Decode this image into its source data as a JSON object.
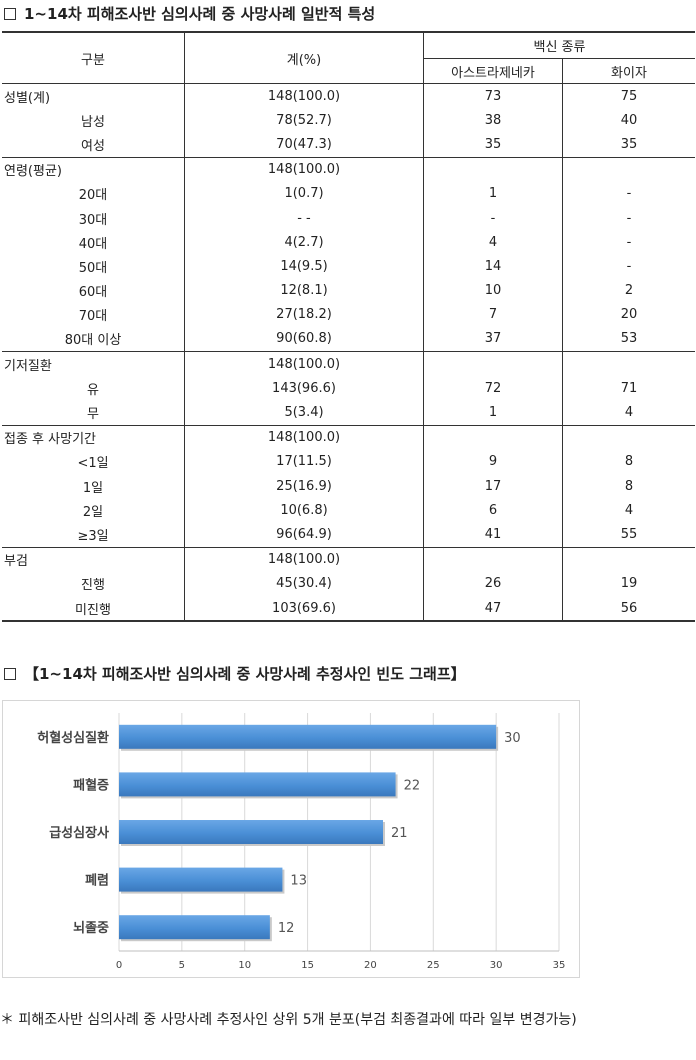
{
  "table_section": {
    "title": "1~14차 피해조사반 심의사례 중 사망사례 일반적 특성",
    "headers": {
      "category": "구분",
      "total": "계(%)",
      "vaccine_type": "백신 종류",
      "astrazeneca": "아스트라제네카",
      "pfizer": "화이자"
    },
    "groups": [
      {
        "label": "성별(계)",
        "total": "148(100.0)",
        "az": "73",
        "pf": "75",
        "rows": [
          {
            "label": "남성",
            "total": "78(52.7)",
            "az": "38",
            "pf": "40"
          },
          {
            "label": "여성",
            "total": "70(47.3)",
            "az": "35",
            "pf": "35"
          }
        ]
      },
      {
        "label": "연령(평균)",
        "total": "148(100.0)",
        "az": "",
        "pf": "",
        "rows": [
          {
            "label": "20대",
            "total": "1(0.7)",
            "az": "1",
            "pf": "-"
          },
          {
            "label": "30대",
            "total": "-   -",
            "az": "-",
            "pf": "-"
          },
          {
            "label": "40대",
            "total": "4(2.7)",
            "az": "4",
            "pf": "-"
          },
          {
            "label": "50대",
            "total": "14(9.5)",
            "az": "14",
            "pf": "-"
          },
          {
            "label": "60대",
            "total": "12(8.1)",
            "az": "10",
            "pf": "2"
          },
          {
            "label": "70대",
            "total": "27(18.2)",
            "az": "7",
            "pf": "20"
          },
          {
            "label": "80대 이상",
            "total": "90(60.8)",
            "az": "37",
            "pf": "53"
          }
        ]
      },
      {
        "label": "기저질환",
        "total": "148(100.0)",
        "az": "",
        "pf": "",
        "rows": [
          {
            "label": "유",
            "total": "143(96.6)",
            "az": "72",
            "pf": "71"
          },
          {
            "label": "무",
            "total": "5(3.4)",
            "az": "1",
            "pf": "4"
          }
        ]
      },
      {
        "label": "접종 후 사망기간",
        "total": "148(100.0)",
        "az": "",
        "pf": "",
        "rows": [
          {
            "label": "<1일",
            "total": "17(11.5)",
            "az": "9",
            "pf": "8"
          },
          {
            "label": "1일",
            "total": "25(16.9)",
            "az": "17",
            "pf": "8"
          },
          {
            "label": "2일",
            "total": "10(6.8)",
            "az": "6",
            "pf": "4"
          },
          {
            "label": "≥3일",
            "total": "96(64.9)",
            "az": "41",
            "pf": "55"
          }
        ]
      },
      {
        "label": "부검",
        "total": "148(100.0)",
        "az": "",
        "pf": "",
        "rows": [
          {
            "label": "진행",
            "total": "45(30.4)",
            "az": "26",
            "pf": "19"
          },
          {
            "label": "미진행",
            "total": "103(69.6)",
            "az": "47",
            "pf": "56"
          }
        ]
      }
    ]
  },
  "chart_section": {
    "title": "【1~14차 피해조사반 심의사례 중 사망사례 추정사인 빈도 그래프】"
  },
  "chart_data": {
    "type": "bar",
    "orientation": "horizontal",
    "categories": [
      "허혈성심질환",
      "패혈증",
      "급성심장사",
      "폐렴",
      "뇌졸중"
    ],
    "values": [
      30,
      22,
      21,
      13,
      12
    ],
    "xlim": [
      0,
      35
    ],
    "xticks": [
      0,
      5,
      10,
      15,
      20,
      25,
      30,
      35
    ],
    "grid": true,
    "bar_color": "#4a8fd6"
  },
  "footnote": "＊ 피해조사반 심의사례 중 사망사례 추정사인 상위 5개 분포(부검 최종결과에 따라 일부 변경가능)"
}
